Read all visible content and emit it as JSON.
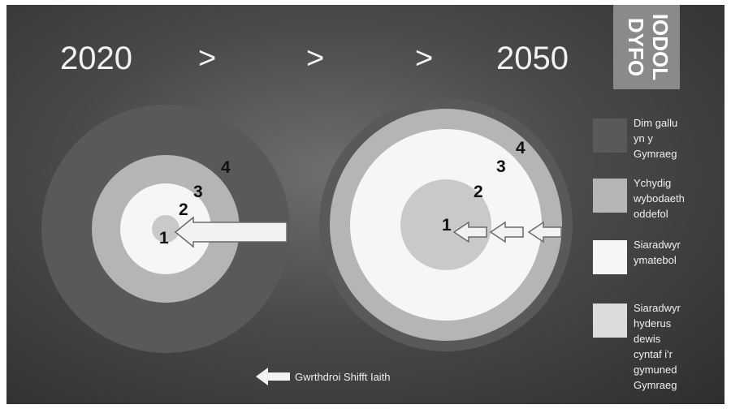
{
  "timeline": {
    "start_year": "2020",
    "separators": [
      ">",
      ">",
      ">"
    ],
    "end_year": "2050"
  },
  "logo": {
    "lines": [
      "IODOL",
      "DYFO"
    ]
  },
  "left_circle": {
    "ring_labels": [
      "1",
      "2",
      "3",
      "4"
    ]
  },
  "right_circle": {
    "ring_labels": [
      "1",
      "2",
      "3",
      "4"
    ]
  },
  "legend": [
    {
      "text": "Dim gallu\nyn y\nGymraeg",
      "color": "#595959"
    },
    {
      "text": "Ychydig\nwybodaeth\noddefol",
      "color": "#b5b5b5"
    },
    {
      "text": "Siaradwyr\nymatebol",
      "color": "#f6f6f6"
    },
    {
      "text": "Siaradwyr\nhyderus\ndewis\ncyntaf i'r\ngymuned\nGymraeg",
      "color": "#dcdcdc"
    }
  ],
  "shift": {
    "label": "Gwrthdroi Shifft Iaith"
  },
  "colors": {
    "outer": "#595959",
    "middle": "#b5b5b5",
    "inner": "#f6f6f6",
    "core": "#c9c9c9",
    "arrow": "#f2f2f2"
  }
}
